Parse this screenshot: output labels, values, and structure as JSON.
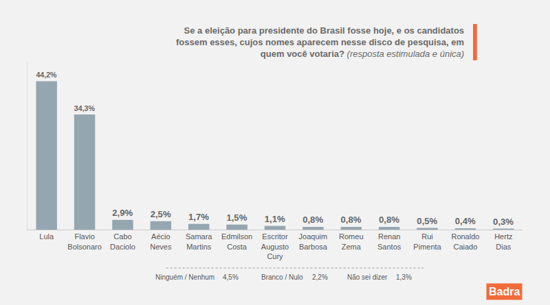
{
  "chart_data": {
    "type": "bar",
    "title": "Se a eleição para presidente do Brasil fosse hoje, e os candidatos fossem esses, cujos nomes aparecem nesse disco de pesquisa, em quem você votaria?",
    "subtitle": "(resposta estimulada e única)",
    "categories": [
      "Lula",
      "Flavio Bolsonaro",
      "Cabo Daciolo",
      "Aécio Neves",
      "Samara Martins",
      "Edmilson Costa",
      "Escritor Augusto Cury",
      "Joaquim Barbosa",
      "Romeu Zema",
      "Renan Santos",
      "Rui Pimenta",
      "Ronaldo Caiado",
      "Hertz Dias"
    ],
    "values": [
      44.2,
      34.3,
      2.9,
      2.5,
      1.7,
      1.5,
      1.1,
      0.8,
      0.8,
      0.8,
      0.5,
      0.4,
      0.3
    ],
    "value_labels": [
      "44,2%",
      "34,3%",
      "2,9%",
      "2,5%",
      "1,7%",
      "1,5%",
      "1,1%",
      "0,8%",
      "0,8%",
      "0,8%",
      "0,5%",
      "0,4%",
      "0,3%"
    ],
    "color": "#94a6b0",
    "ylim": [
      0,
      50
    ],
    "grid": false,
    "data_labels": true,
    "tick_labels": "x",
    "others": [
      {
        "label": "Ninguém / Nenhum",
        "value": 4.5,
        "value_label": "4,5%"
      },
      {
        "label": "Branco / Nulo",
        "value": 2.2,
        "value_label": "2,2%"
      },
      {
        "label": "Não sei dizer",
        "value": 1.3,
        "value_label": "1,3%"
      }
    ],
    "brand": "Badra"
  }
}
